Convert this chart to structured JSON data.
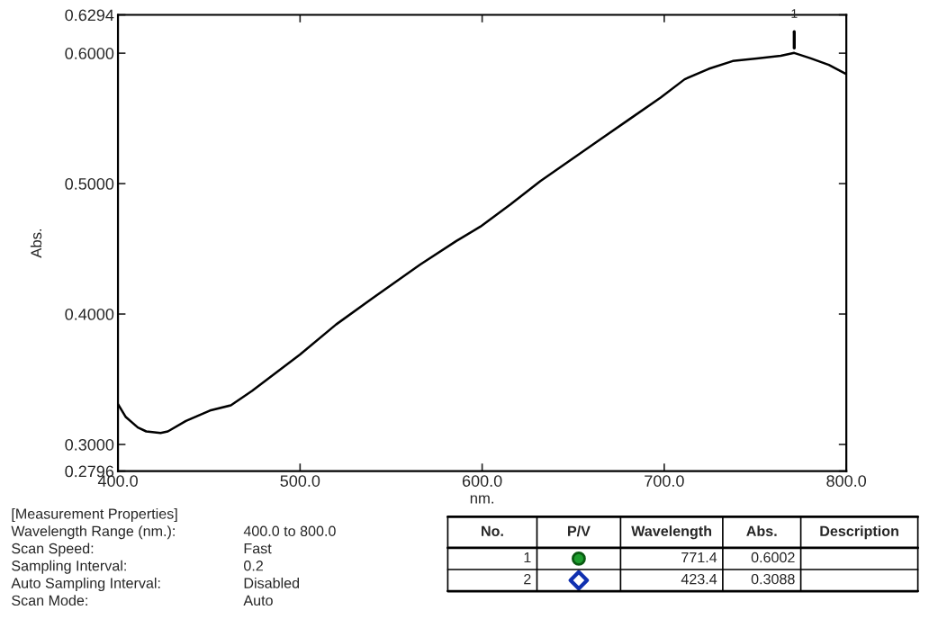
{
  "chart_data": {
    "type": "line",
    "xlabel": "nm.",
    "ylabel": "Abs.",
    "x": [
      400,
      404.3,
      410.9,
      415.5,
      423.4,
      427.4,
      437.3,
      450.5,
      462,
      473.6,
      486.8,
      500,
      519.8,
      539.6,
      566,
      585.8,
      599,
      615.5,
      632,
      648.5,
      665,
      681.5,
      698,
      711.2,
      724.4,
      737.6,
      750.8,
      764,
      771.4,
      780.5,
      790.4,
      800
    ],
    "series": [
      {
        "color": "#000000",
        "values": [
          0.331,
          0.321,
          0.313,
          0.31,
          0.3088,
          0.31,
          0.318,
          0.326,
          0.33,
          0.341,
          0.355,
          0.369,
          0.392,
          0.412,
          0.438,
          0.456,
          0.467,
          0.484,
          0.502,
          0.518,
          0.534,
          0.55,
          0.566,
          0.58,
          0.588,
          0.594,
          0.596,
          0.598,
          0.6002,
          0.596,
          0.591,
          0.584
        ]
      }
    ],
    "xlim": [
      400,
      800
    ],
    "ylim": [
      0.2796,
      0.6294
    ],
    "xticks": [
      {
        "value": 400,
        "label": "400.0"
      },
      {
        "value": 500,
        "label": "500.0"
      },
      {
        "value": 600,
        "label": "600.0"
      },
      {
        "value": 700,
        "label": "700.0"
      },
      {
        "value": 800,
        "label": "800.0"
      }
    ],
    "yticks": [
      {
        "value": 0.2796,
        "label": "0.2796"
      },
      {
        "value": 0.3,
        "label": "0.3000"
      },
      {
        "value": 0.4,
        "label": "0.4000"
      },
      {
        "value": 0.5,
        "label": "0.5000"
      },
      {
        "value": 0.6,
        "label": "0.6000"
      },
      {
        "value": 0.6294,
        "label": "0.6294"
      }
    ],
    "grid": false,
    "marker": "none",
    "line_style": "solid",
    "annotations": [
      {
        "text": "1",
        "x": 771.4,
        "y": 0.6002
      },
      "[Measurement Properties]",
      "Wavelength Range (nm.):",
      "400.0 to 800.0",
      "Scan Speed:",
      "Fast",
      "Sampling Interval:",
      "0.2",
      "Auto Sampling Interval:",
      "Disabled",
      "Scan Mode:",
      "Auto",
      "No.",
      "P/V",
      "Wavelength",
      "Abs.",
      "Description",
      "1",
      "771.4",
      "0.6002",
      "2",
      "423.4",
      "0.3088"
    ]
  }
}
